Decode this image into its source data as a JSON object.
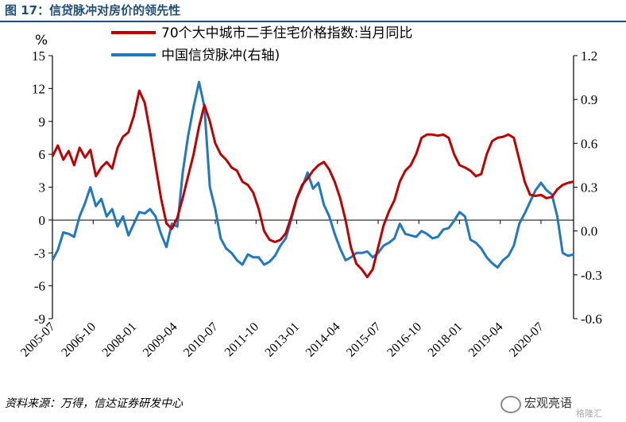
{
  "figure": {
    "title": "图 17：信贷脉冲对房价的领先性",
    "source": "资料来源：万得，信达证券研发中心",
    "watermark": "宏观亮语",
    "watermark_sub": "格隆汇"
  },
  "chart_data": {
    "type": "line",
    "title": "",
    "xlabel": "",
    "ylabel": "%",
    "y_ticks": [
      "15",
      "12",
      "9",
      "6",
      "3",
      "0",
      "-3",
      "-6",
      "-9"
    ],
    "y2_ticks": [
      "1.2",
      "0.9",
      "0.6",
      "0.3",
      "0.0",
      "-0.3",
      "-0.6"
    ],
    "ylim": [
      -9,
      15
    ],
    "y2lim": [
      -0.6,
      1.2
    ],
    "x_ticks": [
      "2005-07",
      "2006-10",
      "2008-01",
      "2009-04",
      "2010-07",
      "2011-10",
      "2013-01",
      "2014-04",
      "2015-07",
      "2016-10",
      "2018-01",
      "2019-04",
      "2020-07"
    ],
    "xlim": [
      "2005-07",
      "2021-07"
    ],
    "legend_position": "top",
    "grid": false,
    "series": [
      {
        "name": "70个大中城市二手住宅价格指数:当月同比",
        "axis": "left",
        "color": "#c00000",
        "points": [
          [
            "2005-07",
            5.8
          ],
          [
            "2005-09",
            6.8
          ],
          [
            "2005-11",
            5.5
          ],
          [
            "2006-01",
            6.3
          ],
          [
            "2006-03",
            5.0
          ],
          [
            "2006-05",
            6.6
          ],
          [
            "2006-07",
            5.7
          ],
          [
            "2006-09",
            6.4
          ],
          [
            "2006-11",
            4.0
          ],
          [
            "2007-01",
            4.8
          ],
          [
            "2007-03",
            5.3
          ],
          [
            "2007-05",
            4.7
          ],
          [
            "2007-07",
            6.6
          ],
          [
            "2007-09",
            7.6
          ],
          [
            "2007-11",
            8.0
          ],
          [
            "2008-01",
            9.5
          ],
          [
            "2008-03",
            11.8
          ],
          [
            "2008-05",
            10.7
          ],
          [
            "2008-07",
            8.0
          ],
          [
            "2008-09",
            5.0
          ],
          [
            "2008-11",
            2.0
          ],
          [
            "2009-01",
            -0.3
          ],
          [
            "2009-03",
            -0.8
          ],
          [
            "2009-05",
            0.2
          ],
          [
            "2009-07",
            2.0
          ],
          [
            "2009-09",
            4.0
          ],
          [
            "2009-11",
            6.0
          ],
          [
            "2010-01",
            8.5
          ],
          [
            "2010-03",
            10.5
          ],
          [
            "2010-05",
            9.0
          ],
          [
            "2010-07",
            7.0
          ],
          [
            "2010-09",
            6.0
          ],
          [
            "2010-11",
            5.5
          ],
          [
            "2011-01",
            4.8
          ],
          [
            "2011-03",
            4.5
          ],
          [
            "2011-05",
            3.5
          ],
          [
            "2011-07",
            3.2
          ],
          [
            "2011-09",
            2.5
          ],
          [
            "2011-11",
            1.0
          ],
          [
            "2012-01",
            -1.0
          ],
          [
            "2012-03",
            -1.8
          ],
          [
            "2012-05",
            -2.0
          ],
          [
            "2012-07",
            -1.8
          ],
          [
            "2012-09",
            -1.2
          ],
          [
            "2012-11",
            0.3
          ],
          [
            "2013-01",
            2.0
          ],
          [
            "2013-03",
            3.2
          ],
          [
            "2013-05",
            3.8
          ],
          [
            "2013-07",
            4.5
          ],
          [
            "2013-09",
            5.0
          ],
          [
            "2013-11",
            5.3
          ],
          [
            "2014-01",
            4.6
          ],
          [
            "2014-03",
            3.5
          ],
          [
            "2014-05",
            2.0
          ],
          [
            "2014-07",
            0.0
          ],
          [
            "2014-09",
            -2.5
          ],
          [
            "2014-11",
            -4.0
          ],
          [
            "2015-01",
            -4.5
          ],
          [
            "2015-03",
            -5.2
          ],
          [
            "2015-05",
            -4.5
          ],
          [
            "2015-07",
            -2.5
          ],
          [
            "2015-09",
            -0.5
          ],
          [
            "2015-11",
            0.8
          ],
          [
            "2016-01",
            1.8
          ],
          [
            "2016-03",
            3.5
          ],
          [
            "2016-05",
            4.5
          ],
          [
            "2016-07",
            5.0
          ],
          [
            "2016-09",
            6.0
          ],
          [
            "2016-11",
            7.5
          ],
          [
            "2017-01",
            7.8
          ],
          [
            "2017-03",
            7.8
          ],
          [
            "2017-05",
            7.7
          ],
          [
            "2017-07",
            7.8
          ],
          [
            "2017-09",
            7.5
          ],
          [
            "2017-11",
            6.0
          ],
          [
            "2018-01",
            5.0
          ],
          [
            "2018-03",
            4.8
          ],
          [
            "2018-05",
            4.5
          ],
          [
            "2018-07",
            4.0
          ],
          [
            "2018-09",
            4.2
          ],
          [
            "2018-11",
            6.0
          ],
          [
            "2019-01",
            7.2
          ],
          [
            "2019-03",
            7.5
          ],
          [
            "2019-05",
            7.6
          ],
          [
            "2019-07",
            7.8
          ],
          [
            "2019-09",
            7.5
          ],
          [
            "2019-11",
            5.5
          ],
          [
            "2020-01",
            3.5
          ],
          [
            "2020-03",
            2.3
          ],
          [
            "2020-05",
            2.2
          ],
          [
            "2020-07",
            2.3
          ],
          [
            "2020-09",
            2.0
          ],
          [
            "2020-11",
            2.1
          ],
          [
            "2021-01",
            2.8
          ],
          [
            "2021-03",
            3.2
          ],
          [
            "2021-05",
            3.4
          ],
          [
            "2021-07",
            3.5
          ]
        ]
      },
      {
        "name": "中国信贷脉冲(右轴)",
        "axis": "right",
        "color": "#1f78c1",
        "points": [
          [
            "2005-07",
            -0.2
          ],
          [
            "2005-09",
            -0.13
          ],
          [
            "2005-11",
            -0.01
          ],
          [
            "2006-01",
            -0.02
          ],
          [
            "2006-03",
            -0.04
          ],
          [
            "2006-05",
            0.1
          ],
          [
            "2006-07",
            0.19
          ],
          [
            "2006-09",
            0.3
          ],
          [
            "2006-11",
            0.17
          ],
          [
            "2007-01",
            0.22
          ],
          [
            "2007-03",
            0.1
          ],
          [
            "2007-05",
            0.15
          ],
          [
            "2007-07",
            0.03
          ],
          [
            "2007-09",
            0.1
          ],
          [
            "2007-11",
            -0.03
          ],
          [
            "2008-01",
            0.05
          ],
          [
            "2008-03",
            0.13
          ],
          [
            "2008-05",
            0.12
          ],
          [
            "2008-07",
            0.15
          ],
          [
            "2008-09",
            0.1
          ],
          [
            "2008-11",
            -0.02
          ],
          [
            "2009-01",
            -0.11
          ],
          [
            "2009-03",
            0.05
          ],
          [
            "2009-05",
            0.03
          ],
          [
            "2009-07",
            0.4
          ],
          [
            "2009-09",
            0.65
          ],
          [
            "2009-11",
            0.85
          ],
          [
            "2010-01",
            1.02
          ],
          [
            "2010-03",
            0.85
          ],
          [
            "2010-05",
            0.3
          ],
          [
            "2010-07",
            0.15
          ],
          [
            "2010-09",
            -0.05
          ],
          [
            "2010-11",
            -0.12
          ],
          [
            "2011-01",
            -0.15
          ],
          [
            "2011-03",
            -0.2
          ],
          [
            "2011-05",
            -0.23
          ],
          [
            "2011-07",
            -0.16
          ],
          [
            "2011-09",
            -0.18
          ],
          [
            "2011-11",
            -0.18
          ],
          [
            "2012-01",
            -0.23
          ],
          [
            "2012-03",
            -0.21
          ],
          [
            "2012-05",
            -0.17
          ],
          [
            "2012-07",
            -0.1
          ],
          [
            "2012-09",
            -0.05
          ],
          [
            "2012-11",
            0.08
          ],
          [
            "2013-01",
            0.22
          ],
          [
            "2013-03",
            0.3
          ],
          [
            "2013-05",
            0.4
          ],
          [
            "2013-07",
            0.29
          ],
          [
            "2013-09",
            0.33
          ],
          [
            "2013-11",
            0.18
          ],
          [
            "2014-01",
            0.1
          ],
          [
            "2014-03",
            -0.02
          ],
          [
            "2014-05",
            -0.12
          ],
          [
            "2014-07",
            -0.2
          ],
          [
            "2014-09",
            -0.18
          ],
          [
            "2014-11",
            -0.15
          ],
          [
            "2015-01",
            -0.15
          ],
          [
            "2015-03",
            -0.14
          ],
          [
            "2015-05",
            -0.18
          ],
          [
            "2015-07",
            -0.15
          ],
          [
            "2015-09",
            -0.1
          ],
          [
            "2015-11",
            -0.08
          ],
          [
            "2016-01",
            -0.05
          ],
          [
            "2016-03",
            0.05
          ],
          [
            "2016-05",
            -0.02
          ],
          [
            "2016-07",
            -0.03
          ],
          [
            "2016-09",
            -0.04
          ],
          [
            "2016-11",
            0.0
          ],
          [
            "2017-01",
            -0.02
          ],
          [
            "2017-03",
            -0.05
          ],
          [
            "2017-05",
            -0.04
          ],
          [
            "2017-07",
            0.01
          ],
          [
            "2017-09",
            0.02
          ],
          [
            "2017-11",
            0.07
          ],
          [
            "2018-01",
            0.13
          ],
          [
            "2018-03",
            0.1
          ],
          [
            "2018-05",
            -0.06
          ],
          [
            "2018-07",
            -0.08
          ],
          [
            "2018-09",
            -0.12
          ],
          [
            "2018-11",
            -0.18
          ],
          [
            "2019-01",
            -0.22
          ],
          [
            "2019-03",
            -0.25
          ],
          [
            "2019-05",
            -0.2
          ],
          [
            "2019-07",
            -0.17
          ],
          [
            "2019-09",
            -0.1
          ],
          [
            "2019-11",
            0.05
          ],
          [
            "2020-01",
            0.12
          ],
          [
            "2020-03",
            0.2
          ],
          [
            "2020-05",
            0.28
          ],
          [
            "2020-07",
            0.33
          ],
          [
            "2020-09",
            0.28
          ],
          [
            "2020-11",
            0.25
          ],
          [
            "2021-01",
            0.1
          ],
          [
            "2021-03",
            -0.15
          ],
          [
            "2021-05",
            -0.17
          ],
          [
            "2021-07",
            -0.16
          ]
        ]
      }
    ]
  }
}
